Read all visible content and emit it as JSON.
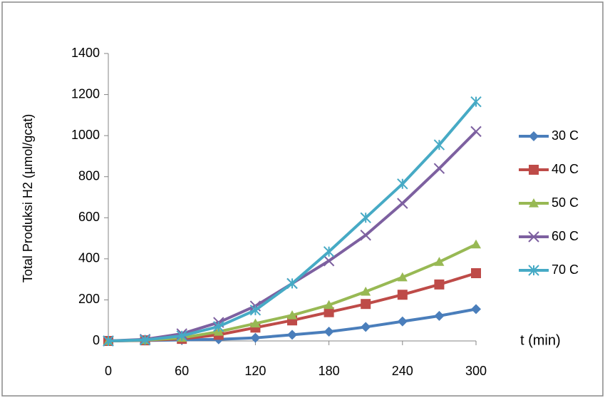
{
  "chart_data": {
    "type": "line",
    "xlabel": "t (min)",
    "ylabel": "Total Produksi H2 (µmol/gcat)",
    "x": [
      0,
      30,
      60,
      90,
      120,
      150,
      180,
      210,
      240,
      270,
      300
    ],
    "xlim": [
      0,
      300
    ],
    "xticks": [
      0,
      60,
      120,
      180,
      240,
      300
    ],
    "ylim": [
      0,
      1400
    ],
    "yticks": [
      0,
      200,
      400,
      600,
      800,
      1000,
      1200,
      1400
    ],
    "legend": "right",
    "series": [
      {
        "name": "30 C",
        "color": "#4a7ebb",
        "marker": "diamond",
        "values": [
          0,
          2,
          5,
          8,
          15,
          30,
          45,
          68,
          95,
          122,
          155
        ]
      },
      {
        "name": "40 C",
        "color": "#be4b48",
        "marker": "square",
        "values": [
          0,
          3,
          10,
          30,
          65,
          100,
          140,
          180,
          225,
          275,
          330
        ]
      },
      {
        "name": "50 C",
        "color": "#98b954",
        "marker": "triangle",
        "values": [
          0,
          4,
          15,
          45,
          85,
          125,
          175,
          240,
          310,
          385,
          470
        ]
      },
      {
        "name": "60 C",
        "color": "#7d60a0",
        "marker": "x",
        "values": [
          0,
          8,
          35,
          90,
          170,
          280,
          390,
          515,
          670,
          840,
          1020
        ]
      },
      {
        "name": "70 C",
        "color": "#46aac5",
        "marker": "star",
        "values": [
          0,
          5,
          25,
          70,
          150,
          280,
          435,
          600,
          765,
          955,
          1165
        ]
      }
    ]
  }
}
